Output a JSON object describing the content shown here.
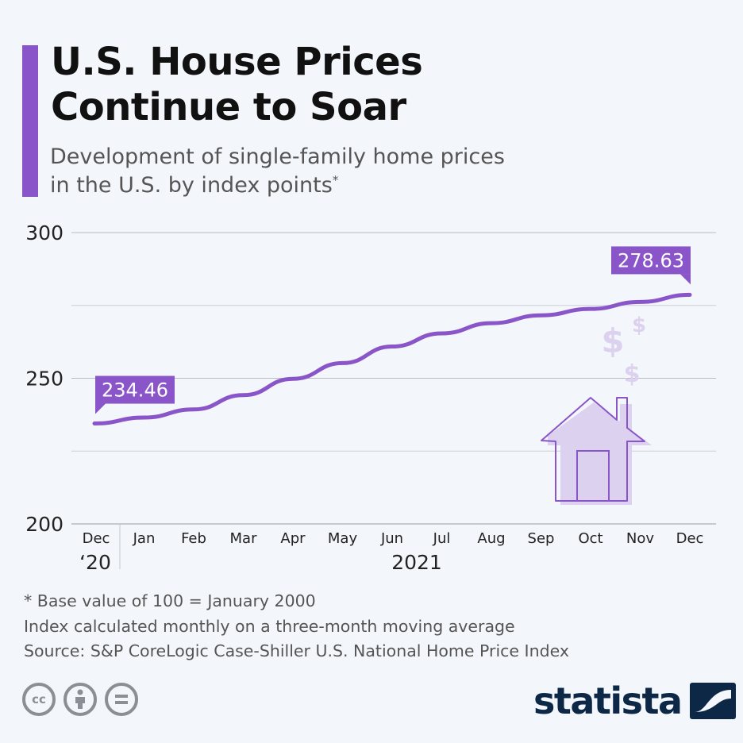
{
  "header": {
    "title_line1": "U.S. House Prices",
    "title_line2": "Continue to Soar",
    "subtitle_line1": "Development of single-family home prices",
    "subtitle_line2": "in the U.S. by index points",
    "subtitle_mark": "*"
  },
  "colors": {
    "accent": "#8a55c9",
    "line": "#8a55c9",
    "illustration": "#dcd1ee",
    "brand": "#0d2847"
  },
  "chart_data": {
    "type": "line",
    "title": "U.S. House Prices Continue to Soar",
    "categories": [
      "Dec",
      "Jan",
      "Feb",
      "Mar",
      "Apr",
      "May",
      "Jun",
      "Jul",
      "Aug",
      "Sep",
      "Oct",
      "Nov",
      "Dec"
    ],
    "year_labels": [
      {
        "label": "‘20",
        "category_index": 0
      },
      {
        "label": "2021",
        "category_index": 6
      }
    ],
    "series": [
      {
        "values": [
          234.46,
          236.5,
          239.3,
          244.2,
          249.8,
          255.2,
          260.9,
          265.4,
          268.9,
          271.6,
          273.8,
          276.2,
          278.63
        ]
      }
    ],
    "data_labels": [
      {
        "category_index": 0,
        "text": "234.46"
      },
      {
        "category_index": 12,
        "text": "278.63"
      }
    ],
    "yticks": [
      200,
      250,
      300
    ],
    "ylim": [
      200,
      300
    ],
    "grid": true,
    "legend": "none",
    "decoration": "house-with-dollar-signs"
  },
  "footer": {
    "note1": "* Base value of 100 = January 2000",
    "note2": "Index calculated monthly on a three-month moving average",
    "source": "Source: S&P CoreLogic Case-Shiller U.S. National Home Price Index",
    "license_icons": [
      "cc-icon",
      "attribution-icon",
      "no-derivatives-icon"
    ],
    "cc_text": "cc",
    "brand": "statista"
  }
}
